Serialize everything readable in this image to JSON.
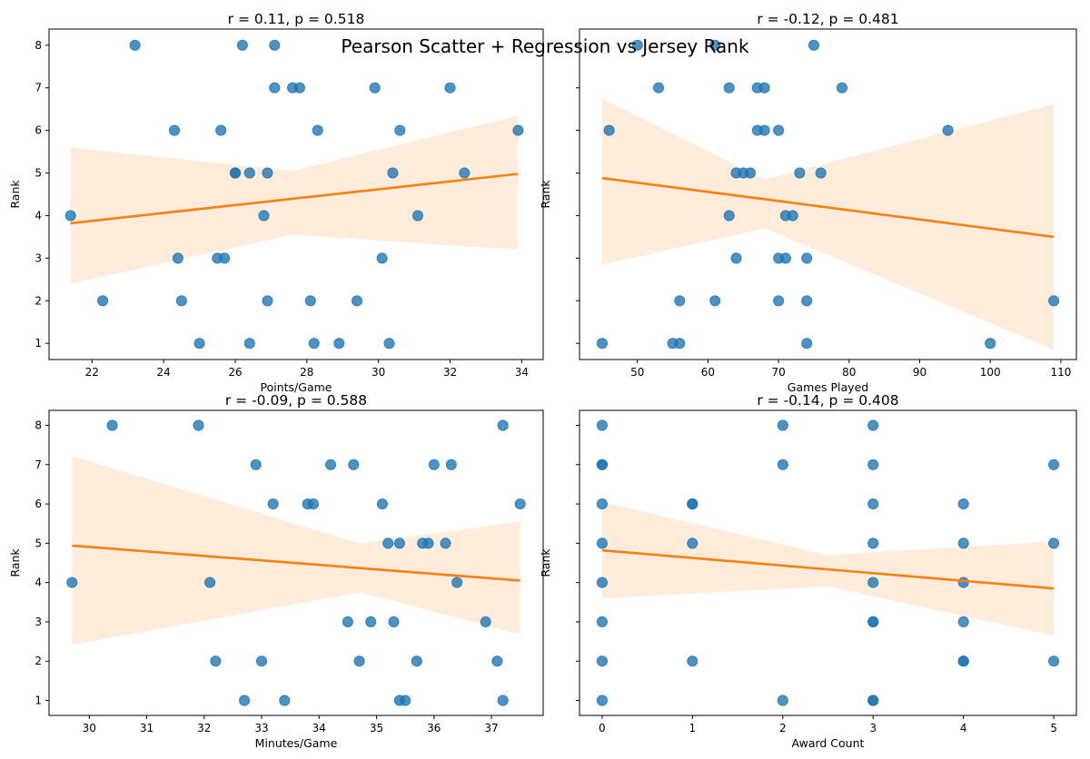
{
  "suptitle": "Pearson Scatter + Regression vs Jersey Rank",
  "colors": {
    "points": "#1f77b4",
    "line": "#ff7f0e",
    "band": "#ff7f0e"
  },
  "chart_data": [
    {
      "type": "scatter",
      "title": "r = 0.11, p = 0.518",
      "xlabel": "Points/Game",
      "ylabel": "Rank",
      "xlim": [
        20.8,
        34.6
      ],
      "ylim": [
        0.62,
        8.38
      ],
      "xticks": [
        22,
        24,
        26,
        28,
        30,
        32,
        34
      ],
      "yticks": [
        1,
        2,
        3,
        4,
        5,
        6,
        7,
        8
      ],
      "x": [
        23.2,
        26.2,
        27.1,
        27.1,
        27.6,
        27.8,
        29.9,
        32.0,
        24.3,
        25.6,
        28.3,
        30.6,
        33.9,
        26.0,
        26.0,
        26.4,
        26.9,
        30.4,
        32.4,
        21.4,
        26.8,
        31.1,
        24.4,
        25.5,
        25.7,
        30.1,
        22.3,
        24.5,
        26.9,
        28.1,
        29.4,
        25.0,
        26.4,
        28.2,
        28.9,
        30.3
      ],
      "y": [
        8,
        8,
        8,
        7,
        7,
        7,
        7,
        7,
        6,
        6,
        6,
        6,
        6,
        5,
        5,
        5,
        5,
        5,
        5,
        4,
        4,
        4,
        3,
        3,
        3,
        3,
        2,
        2,
        2,
        2,
        2,
        1,
        1,
        1,
        1,
        1
      ],
      "regression": {
        "x": [
          21.4,
          33.9
        ],
        "y": [
          3.82,
          4.98
        ]
      },
      "ci": {
        "x": [
          21.4,
          27.6,
          33.9
        ],
        "lower": [
          2.4,
          3.55,
          3.2
        ],
        "upper": [
          5.6,
          5.05,
          6.35
        ]
      }
    },
    {
      "type": "scatter",
      "title": "r = -0.12, p = 0.481",
      "xlabel": "Games Played",
      "ylabel": "Rank",
      "xlim": [
        41.8,
        112.2
      ],
      "ylim": [
        0.62,
        8.38
      ],
      "xticks": [
        50,
        60,
        70,
        80,
        90,
        100,
        110
      ],
      "yticks": [
        1,
        2,
        3,
        4,
        5,
        6,
        7,
        8
      ],
      "x": [
        50,
        61,
        75,
        53,
        63,
        67,
        68,
        79,
        46,
        67,
        68,
        70,
        94,
        64,
        65,
        66,
        73,
        76,
        63,
        71,
        72,
        64,
        70,
        71,
        74,
        56,
        61,
        70,
        74,
        109,
        45,
        55,
        56,
        74,
        100
      ],
      "y": [
        8,
        8,
        8,
        7,
        7,
        7,
        7,
        7,
        6,
        6,
        6,
        6,
        6,
        5,
        5,
        5,
        5,
        5,
        4,
        4,
        4,
        3,
        3,
        3,
        3,
        2,
        2,
        2,
        2,
        2,
        1,
        1,
        1,
        1,
        1
      ],
      "regression": {
        "x": [
          45,
          109
        ],
        "y": [
          4.88,
          3.5
        ]
      },
      "ci": {
        "x": [
          45,
          68,
          109
        ],
        "lower": [
          2.85,
          3.7,
          0.85
        ],
        "upper": [
          6.75,
          4.85,
          6.62
        ]
      }
    },
    {
      "type": "scatter",
      "title": "r = -0.09, p = 0.588",
      "xlabel": "Minutes/Game",
      "ylabel": "Rank",
      "xlim": [
        29.3,
        37.9
      ],
      "ylim": [
        0.62,
        8.38
      ],
      "xticks": [
        30,
        31,
        32,
        33,
        34,
        35,
        36,
        37
      ],
      "yticks": [
        1,
        2,
        3,
        4,
        5,
        6,
        7,
        8
      ],
      "x": [
        30.4,
        31.9,
        37.2,
        32.9,
        34.2,
        34.6,
        36.0,
        36.3,
        33.2,
        33.8,
        33.9,
        35.1,
        37.5,
        35.2,
        35.4,
        35.8,
        35.9,
        36.2,
        29.7,
        32.1,
        36.4,
        34.5,
        34.9,
        35.3,
        36.9,
        32.2,
        33.0,
        34.7,
        35.7,
        37.1,
        32.7,
        33.4,
        35.4,
        35.5,
        37.2
      ],
      "y": [
        8,
        8,
        8,
        7,
        7,
        7,
        7,
        7,
        6,
        6,
        6,
        6,
        6,
        5,
        5,
        5,
        5,
        5,
        4,
        4,
        4,
        3,
        3,
        3,
        3,
        2,
        2,
        2,
        2,
        2,
        1,
        1,
        1,
        1,
        1
      ],
      "regression": {
        "x": [
          29.7,
          37.5
        ],
        "y": [
          4.94,
          4.05
        ]
      },
      "ci": {
        "x": [
          29.7,
          34.7,
          37.5
        ],
        "lower": [
          2.42,
          3.75,
          2.68
        ],
        "upper": [
          7.22,
          5.0,
          5.55
        ]
      }
    },
    {
      "type": "scatter",
      "title": "r = -0.14, p = 0.408",
      "xlabel": "Award Count",
      "ylabel": "Rank",
      "xlim": [
        -0.25,
        5.25
      ],
      "ylim": [
        0.62,
        8.38
      ],
      "xticks": [
        0,
        1,
        2,
        3,
        4,
        5
      ],
      "yticks": [
        1,
        2,
        3,
        4,
        5,
        6,
        7,
        8
      ],
      "x": [
        0,
        2,
        3,
        0,
        0,
        2,
        3,
        5,
        0,
        1,
        1,
        3,
        4,
        0,
        1,
        3,
        4,
        5,
        0,
        3,
        4,
        0,
        3,
        3,
        4,
        0,
        1,
        4,
        4,
        5,
        0,
        2,
        3,
        3
      ],
      "y": [
        8,
        8,
        8,
        7,
        7,
        7,
        7,
        7,
        6,
        6,
        6,
        6,
        6,
        5,
        5,
        5,
        5,
        5,
        4,
        4,
        4,
        3,
        3,
        3,
        3,
        2,
        2,
        2,
        2,
        2,
        1,
        1,
        1,
        1
      ],
      "regression": {
        "x": [
          0,
          5
        ],
        "y": [
          4.82,
          3.85
        ]
      },
      "ci": {
        "x": [
          0,
          2.5,
          5
        ],
        "lower": [
          3.6,
          3.9,
          2.65
        ],
        "upper": [
          6.05,
          4.7,
          5.05
        ]
      }
    }
  ]
}
